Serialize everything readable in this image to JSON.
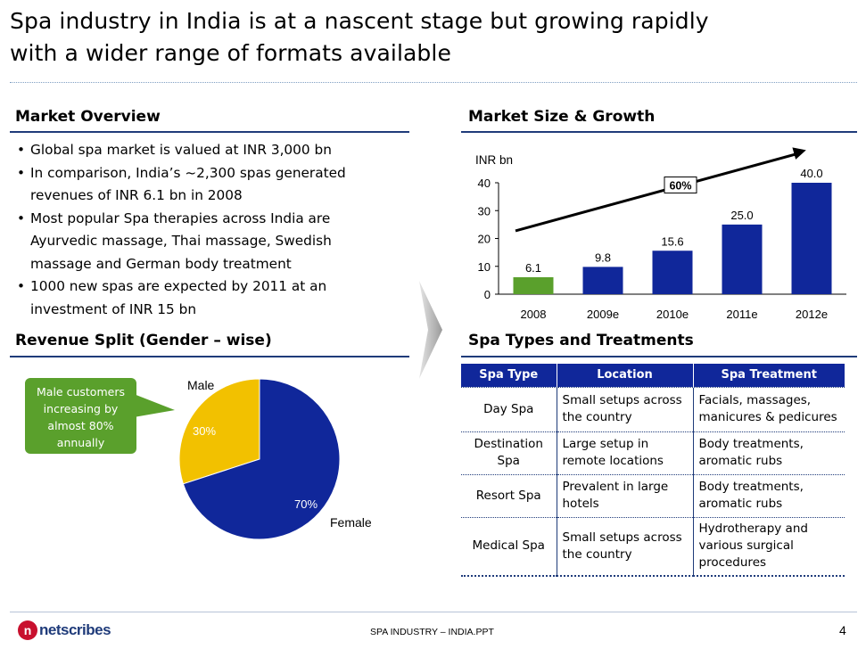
{
  "title": {
    "line1": "Spa industry in India is at a nascent stage but growing rapidly",
    "line2": "with a wider range of formats available"
  },
  "market_overview": {
    "heading": "Market Overview",
    "bullets": [
      [
        "Global spa market is valued at INR 3,000 bn"
      ],
      [
        "In comparison, India’s ~2,300 spas generated",
        "revenues of INR 6.1 bn in 2008"
      ],
      [
        "Most popular Spa therapies across India are",
        "Ayurvedic massage, Thai massage, Swedish",
        "massage and German body treatment"
      ],
      [
        "1000 new spas are expected by 2011 at an",
        "investment of INR 15 bn"
      ]
    ]
  },
  "market_size": {
    "heading": "Market Size & Growth",
    "unit_label": "INR bn",
    "growth_label": "60%"
  },
  "revenue_split": {
    "heading": "Revenue Split (Gender – wise)",
    "callout": [
      "Male customers",
      "increasing by",
      "almost 80%",
      "annually"
    ]
  },
  "spa_types": {
    "heading": "Spa Types and Treatments",
    "columns": [
      "Spa Type",
      "Location",
      "Spa Treatment"
    ],
    "rows": [
      {
        "type": [
          "Day Spa"
        ],
        "location": [
          "Small setups across",
          "the country"
        ],
        "treatment": [
          "Facials, massages,",
          "manicures & pedicures"
        ]
      },
      {
        "type": [
          "Destination",
          "Spa"
        ],
        "location": [
          "Large setup in",
          "remote locations"
        ],
        "treatment": [
          "Body treatments,",
          "aromatic rubs"
        ]
      },
      {
        "type": [
          "Resort Spa"
        ],
        "location": [
          "Prevalent in large",
          "hotels"
        ],
        "treatment": [
          "Body treatments,",
          "aromatic rubs"
        ]
      },
      {
        "type": [
          "Medical Spa"
        ],
        "location": [
          "Small setups across",
          "the country"
        ],
        "treatment": [
          "Hydrotherapy and",
          "various surgical",
          "procedures"
        ]
      }
    ]
  },
  "footer": {
    "logo_text": "netscribes",
    "logo_mark": "n",
    "center": "SPA INDUSTRY – INDIA.PPT",
    "page": "4"
  },
  "colors": {
    "bar_blue": "#10279a",
    "bar_green": "#5aa02c",
    "pie_yellow": "#f2c100",
    "header_rule": "#1f3b7a"
  },
  "chart_data": [
    {
      "type": "bar",
      "title": "Market Size & Growth",
      "ylabel": "INR bn",
      "categories": [
        "2008",
        "2009e",
        "2010e",
        "2011e",
        "2012e"
      ],
      "values": [
        6.1,
        9.8,
        15.6,
        25.0,
        40.0
      ],
      "value_labels": [
        "6.1",
        "9.8",
        "15.6",
        "25.0",
        "40.0"
      ],
      "yticks": [
        "0",
        "10",
        "20",
        "30",
        "40"
      ],
      "ylim": [
        0,
        40
      ],
      "annotation": "60%",
      "highlight_first": true
    },
    {
      "type": "pie",
      "title": "Revenue Split (Gender – wise)",
      "labels": [
        "Male",
        "Female"
      ],
      "values": [
        30,
        70
      ],
      "value_labels": [
        "30%",
        "70%"
      ]
    }
  ]
}
